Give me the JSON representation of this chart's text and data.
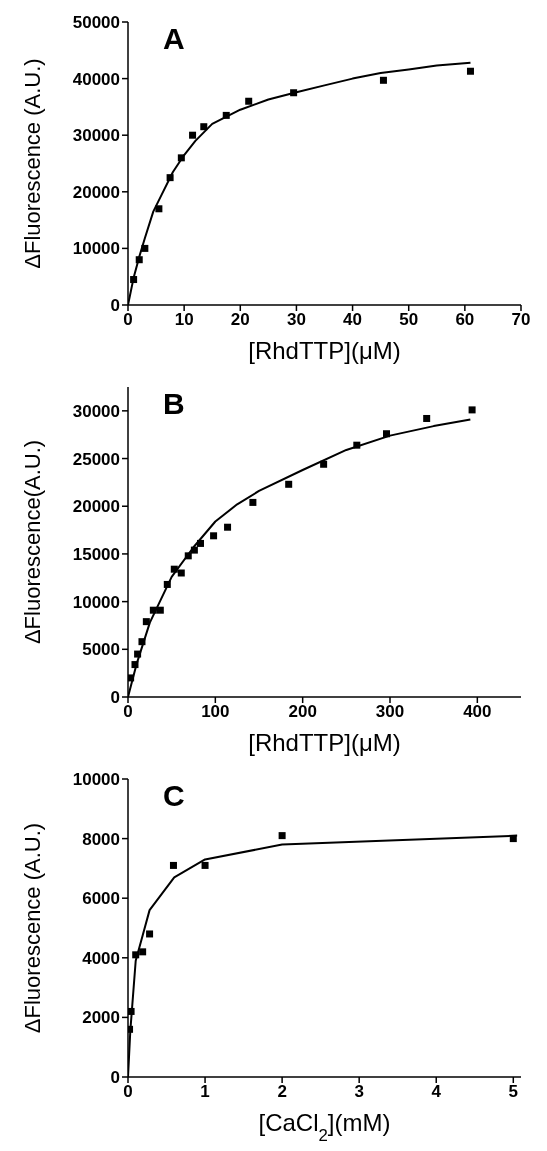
{
  "chart_data": [
    {
      "type": "scatter",
      "title": "A",
      "xlabel": "[RhdTTP](μM)",
      "ylabel": "ΔFluorescence (A.U.)",
      "xlim": [
        0,
        70
      ],
      "xticks": [
        0,
        10,
        20,
        30,
        40,
        50,
        60,
        70
      ],
      "ylim": [
        0,
        50000
      ],
      "yticks": [
        0,
        10000,
        20000,
        30000,
        40000,
        50000
      ],
      "grid": false,
      "legend": false,
      "marker": "square",
      "series": [
        {
          "color": "#000000",
          "x": [
            1,
            2,
            3,
            5.5,
            7.5,
            9.5,
            11.5,
            13.5,
            17.5,
            21.5,
            29.5,
            45.5,
            61
          ],
          "values": [
            4500,
            8000,
            10000,
            17000,
            22500,
            26000,
            30000,
            31500,
            33500,
            36000,
            37500,
            39700,
            41300
          ]
        },
        {
          "type": "line",
          "color": "#000000",
          "marker": "none",
          "line_style": "solid",
          "x": [
            0,
            1,
            2,
            3,
            4.5,
            6,
            8,
            10,
            12,
            15,
            20,
            25,
            30,
            35,
            40,
            45,
            50,
            55,
            61
          ],
          "values": [
            0,
            4800,
            8500,
            11800,
            16500,
            19500,
            23500,
            26500,
            29000,
            32000,
            34500,
            36300,
            37600,
            38800,
            40000,
            41000,
            41600,
            42300,
            42800
          ]
        }
      ]
    },
    {
      "type": "scatter",
      "title": "B",
      "xlabel": "[RhdTTP](μM)",
      "ylabel": "ΔFluorescence(A.U.)",
      "xlim": [
        0,
        450
      ],
      "xticks": [
        0,
        100,
        200,
        300,
        400
      ],
      "ylim": [
        0,
        32500
      ],
      "yticks": [
        0,
        5000,
        10000,
        15000,
        20000,
        25000,
        30000
      ],
      "grid": false,
      "legend": false,
      "marker": "square",
      "series": [
        {
          "color": "#000000",
          "x": [
            3,
            8,
            11,
            16,
            21,
            29,
            37,
            45,
            53,
            61,
            69,
            76,
            83,
            98,
            114,
            143,
            184,
            224,
            262,
            296,
            342,
            394
          ],
          "values": [
            2000,
            3400,
            4500,
            5800,
            7900,
            9100,
            9100,
            11800,
            13400,
            13000,
            14800,
            15400,
            16100,
            16900,
            17800,
            20400,
            22300,
            24400,
            26400,
            27600,
            29200,
            30100
          ]
        },
        {
          "type": "line",
          "color": "#000000",
          "marker": "none",
          "line_style": "solid",
          "x": [
            0,
            10,
            25,
            50,
            75,
            100,
            125,
            150,
            200,
            250,
            300,
            350,
            392
          ],
          "values": [
            0,
            3500,
            7800,
            12600,
            15700,
            18400,
            20200,
            21600,
            23800,
            25900,
            27400,
            28400,
            29100
          ]
        }
      ]
    },
    {
      "type": "scatter",
      "title": "C",
      "xlabel": "[CaCl$_{2}$](mM)",
      "ylabel": "ΔFluorescence (A.U.)",
      "xlim": [
        0,
        5.1
      ],
      "xticks": [
        0,
        1,
        2,
        3,
        4,
        5
      ],
      "ylim": [
        0,
        10000
      ],
      "yticks": [
        0,
        2000,
        4000,
        6000,
        8000,
        10000
      ],
      "grid": false,
      "legend": false,
      "marker": "square",
      "series": [
        {
          "color": "#000000",
          "x": [
            0.02,
            0.04,
            0.1,
            0.19,
            0.28,
            0.59,
            1.0,
            2.0,
            5.0
          ],
          "values": [
            1600,
            2200,
            4100,
            4200,
            4800,
            7100,
            7100,
            8100,
            8000
          ]
        },
        {
          "type": "line",
          "color": "#000000",
          "marker": "none",
          "line_style": "solid",
          "x": [
            0,
            0.03,
            0.1,
            0.19,
            0.28,
            0.6,
            1.0,
            2.0,
            5.05
          ],
          "values": [
            0,
            1550,
            3900,
            4750,
            5600,
            6700,
            7300,
            7800,
            8100
          ]
        }
      ]
    }
  ]
}
